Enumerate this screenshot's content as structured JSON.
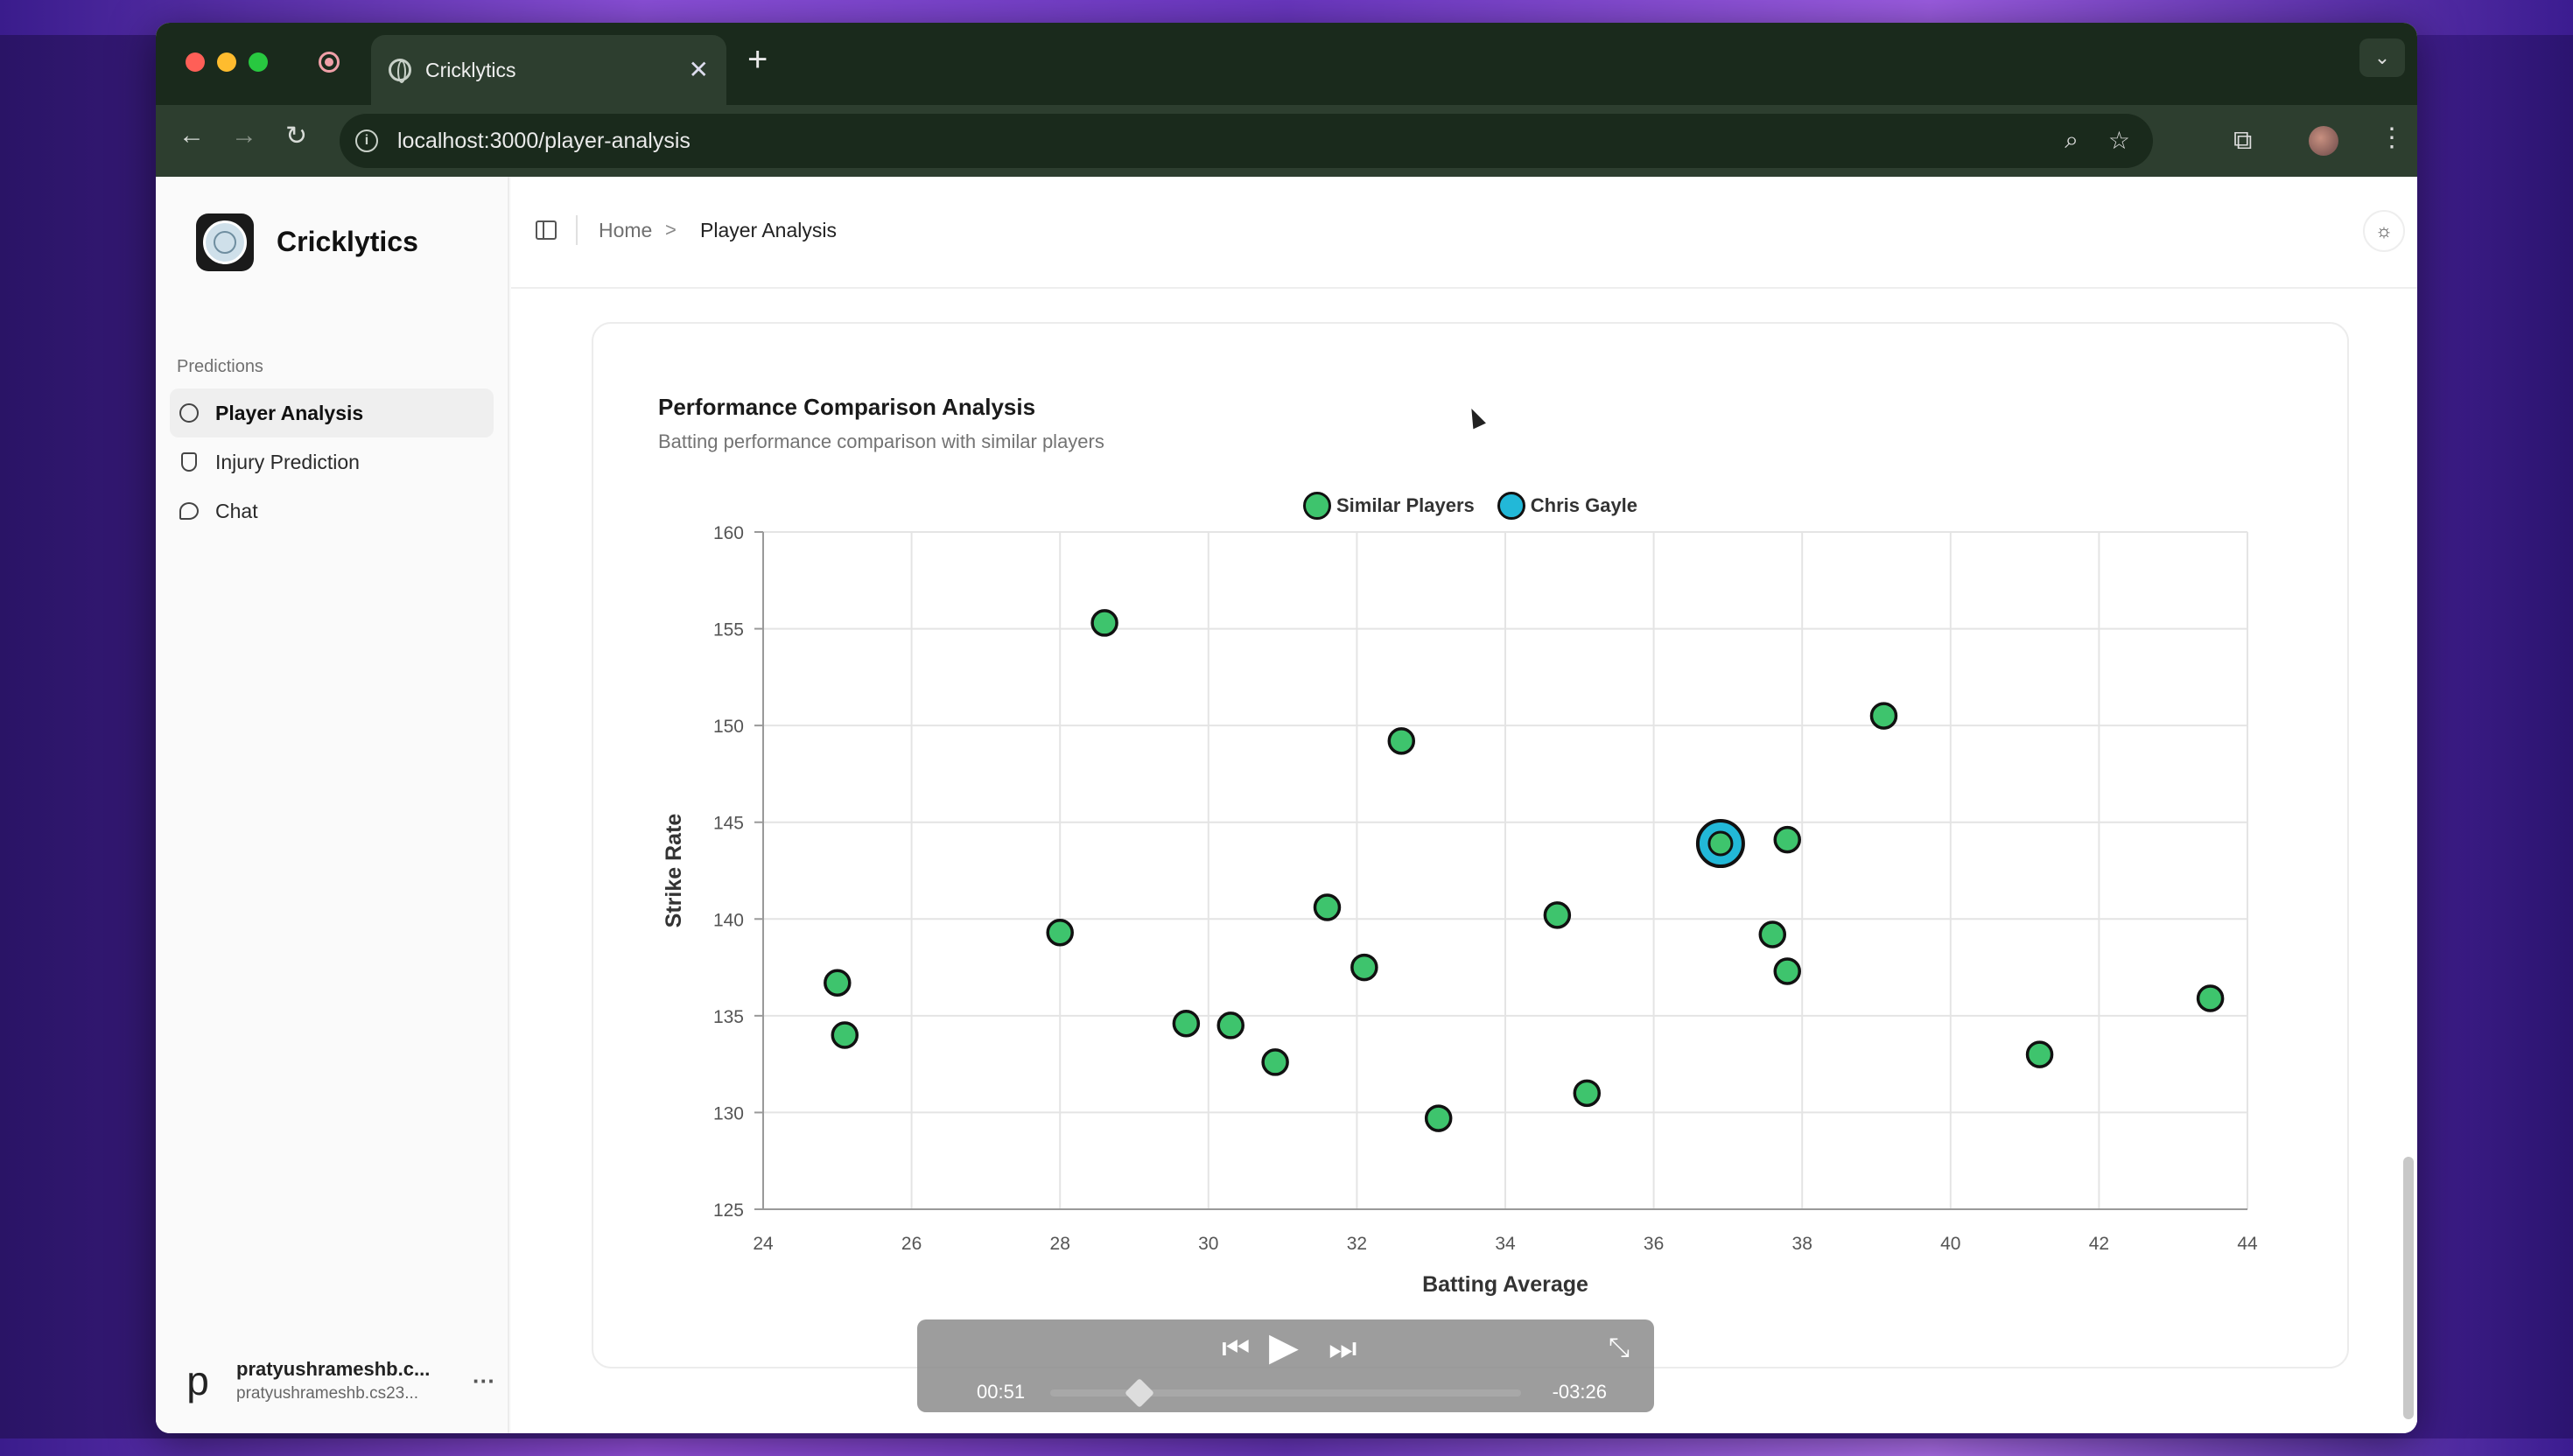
{
  "browser": {
    "tab_title": "Cricklytics",
    "url": "localhost:3000/player-analysis",
    "new_tab": "+",
    "tab_close": "✕"
  },
  "app": {
    "brand": "Cricklytics",
    "nav_group": "Predictions",
    "nav_items": [
      {
        "label": "Player Analysis",
        "active": true,
        "icon": "globe-icon"
      },
      {
        "label": "Injury Prediction",
        "active": false,
        "icon": "shield-icon"
      },
      {
        "label": "Chat",
        "active": false,
        "icon": "chat-icon"
      }
    ],
    "user": {
      "avatar_letter": "p",
      "name": "pratyushrameshb.c...",
      "email": "pratyushrameshb.cs23...",
      "more": "···"
    }
  },
  "breadcrumb": {
    "home": "Home",
    "sep": ">",
    "current": "Player Analysis"
  },
  "card": {
    "title": "Performance Comparison Analysis",
    "subtitle": "Batting performance comparison with similar players"
  },
  "chart_data": {
    "type": "scatter",
    "xlabel": "Batting Average",
    "ylabel": "Strike Rate",
    "xlim": [
      24,
      44
    ],
    "ylim": [
      125,
      160
    ],
    "xticks": [
      24,
      26,
      28,
      30,
      32,
      34,
      36,
      38,
      40,
      42,
      44
    ],
    "yticks": [
      125,
      130,
      135,
      140,
      145,
      150,
      155,
      160
    ],
    "grid": true,
    "legend_position": "top-center",
    "series": [
      {
        "name": "Similar Players",
        "color": "#3ec46d",
        "points": [
          [
            25.0,
            136.7
          ],
          [
            25.1,
            134.0
          ],
          [
            28.0,
            139.3
          ],
          [
            28.6,
            155.3
          ],
          [
            29.7,
            134.6
          ],
          [
            30.3,
            134.5
          ],
          [
            30.9,
            132.6
          ],
          [
            31.6,
            140.6
          ],
          [
            32.1,
            137.5
          ],
          [
            32.6,
            149.2
          ],
          [
            33.1,
            129.7
          ],
          [
            34.7,
            140.2
          ],
          [
            35.1,
            131.0
          ],
          [
            37.6,
            139.2
          ],
          [
            37.8,
            144.1
          ],
          [
            37.8,
            137.3
          ],
          [
            39.1,
            150.5
          ],
          [
            41.2,
            133.0
          ],
          [
            43.5,
            135.9
          ]
        ]
      },
      {
        "name": "Chris Gayle",
        "color": "#22b8d8",
        "points": [
          [
            36.9,
            143.9
          ]
        ]
      }
    ]
  },
  "player": {
    "elapsed": "00:51",
    "remaining": "-03:26",
    "progress": 0.19
  }
}
